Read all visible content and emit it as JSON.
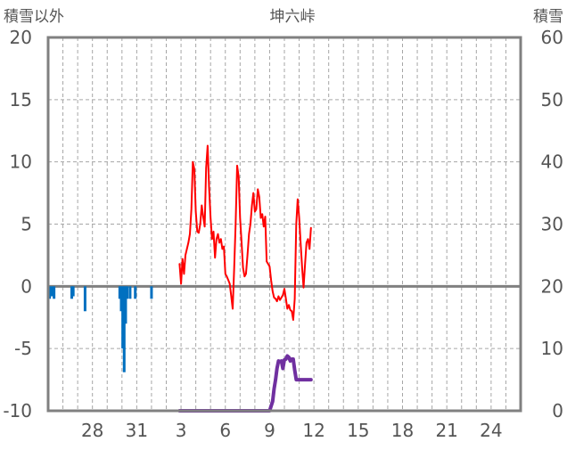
{
  "chart_data": {
    "type": "line",
    "title": "坤六峠",
    "left_axis_title": "積雪以外",
    "right_axis_title": "積雪",
    "x_ticks": [
      "28",
      "31",
      "3",
      "6",
      "9",
      "12",
      "15",
      "18",
      "21",
      "24"
    ],
    "x_tick_days": [
      3,
      6,
      9,
      12,
      15,
      18,
      21,
      24,
      27,
      30
    ],
    "xlim_days": [
      0,
      32
    ],
    "left_ylim": [
      -10,
      20
    ],
    "left_ticks": [
      "20",
      "15",
      "10",
      "5",
      "0",
      "-5",
      "-10"
    ],
    "right_ylim": [
      0,
      60
    ],
    "right_ticks": [
      "60",
      "50",
      "40",
      "30",
      "20",
      "10",
      "0"
    ],
    "grid": true,
    "series": [
      {
        "axis": "left",
        "color": "#ff0000",
        "style": "line",
        "points": [
          [
            8.9,
            1.8
          ],
          [
            9.0,
            0.2
          ],
          [
            9.1,
            2.2
          ],
          [
            9.2,
            1.0
          ],
          [
            9.3,
            2.5
          ],
          [
            9.5,
            3.5
          ],
          [
            9.6,
            4.2
          ],
          [
            9.7,
            6.2
          ],
          [
            9.8,
            10.0
          ],
          [
            9.9,
            9.4
          ],
          [
            10.0,
            6.0
          ],
          [
            10.1,
            4.4
          ],
          [
            10.2,
            4.3
          ],
          [
            10.3,
            5.0
          ],
          [
            10.4,
            6.5
          ],
          [
            10.5,
            5.6
          ],
          [
            10.6,
            4.8
          ],
          [
            10.7,
            9.5
          ],
          [
            10.8,
            11.3
          ],
          [
            10.9,
            8.0
          ],
          [
            11.0,
            5.5
          ],
          [
            11.1,
            3.8
          ],
          [
            11.2,
            4.4
          ],
          [
            11.3,
            2.3
          ],
          [
            11.4,
            3.8
          ],
          [
            11.5,
            4.2
          ],
          [
            11.6,
            3.5
          ],
          [
            11.7,
            3.8
          ],
          [
            11.8,
            3.0
          ],
          [
            11.9,
            3.2
          ],
          [
            12.0,
            1.0
          ],
          [
            12.1,
            0.8
          ],
          [
            12.2,
            0.5
          ],
          [
            12.3,
            0.2
          ],
          [
            12.4,
            -0.8
          ],
          [
            12.5,
            -1.8
          ],
          [
            12.6,
            1.5
          ],
          [
            12.7,
            5.0
          ],
          [
            12.8,
            9.7
          ],
          [
            12.9,
            8.8
          ],
          [
            13.0,
            5.5
          ],
          [
            13.1,
            3.5
          ],
          [
            13.2,
            1.5
          ],
          [
            13.3,
            0.8
          ],
          [
            13.4,
            1.0
          ],
          [
            13.5,
            2.5
          ],
          [
            13.6,
            4.2
          ],
          [
            13.7,
            5.0
          ],
          [
            13.8,
            6.5
          ],
          [
            13.9,
            7.5
          ],
          [
            14.0,
            6.0
          ],
          [
            14.1,
            6.2
          ],
          [
            14.2,
            7.8
          ],
          [
            14.3,
            7.2
          ],
          [
            14.4,
            5.5
          ],
          [
            14.5,
            5.8
          ],
          [
            14.6,
            4.8
          ],
          [
            14.7,
            5.6
          ],
          [
            14.8,
            2.0
          ],
          [
            14.9,
            1.8
          ],
          [
            15.0,
            1.6
          ],
          [
            15.1,
            0.5
          ],
          [
            15.2,
            -0.4
          ],
          [
            15.3,
            -0.9
          ],
          [
            15.4,
            -1.0
          ],
          [
            15.5,
            -1.2
          ],
          [
            15.6,
            -0.8
          ],
          [
            15.7,
            -1.1
          ],
          [
            15.8,
            -0.9
          ],
          [
            15.9,
            -0.7
          ],
          [
            16.0,
            -0.2
          ],
          [
            16.1,
            -1.0
          ],
          [
            16.2,
            -1.8
          ],
          [
            16.3,
            -1.5
          ],
          [
            16.4,
            -1.9
          ],
          [
            16.5,
            -2.0
          ],
          [
            16.6,
            -2.7
          ],
          [
            16.7,
            -1.0
          ],
          [
            16.8,
            5.0
          ],
          [
            16.9,
            7.0
          ],
          [
            17.0,
            5.5
          ],
          [
            17.1,
            3.5
          ],
          [
            17.2,
            1.5
          ],
          [
            17.3,
            -0.1
          ],
          [
            17.4,
            1.8
          ],
          [
            17.5,
            3.5
          ],
          [
            17.6,
            3.8
          ],
          [
            17.7,
            3.0
          ],
          [
            17.8,
            4.7
          ]
        ]
      },
      {
        "axis": "right",
        "color": "#7030a0",
        "style": "line",
        "points": [
          [
            8.9,
            0.0
          ],
          [
            15.0,
            0.0
          ],
          [
            15.2,
            1.5
          ],
          [
            15.3,
            3.5
          ],
          [
            15.4,
            5.0
          ],
          [
            15.5,
            6.8
          ],
          [
            15.6,
            8.0
          ],
          [
            15.7,
            7.9
          ],
          [
            15.8,
            8.0
          ],
          [
            15.9,
            6.8
          ],
          [
            16.0,
            8.2
          ],
          [
            16.1,
            8.3
          ],
          [
            16.2,
            8.8
          ],
          [
            16.3,
            8.6
          ],
          [
            16.4,
            8.0
          ],
          [
            16.5,
            8.3
          ],
          [
            16.6,
            8.3
          ],
          [
            16.7,
            6.5
          ],
          [
            16.8,
            5.0
          ],
          [
            16.9,
            5.0
          ],
          [
            17.6,
            5.0
          ],
          [
            17.8,
            5.0
          ]
        ]
      },
      {
        "axis": "left",
        "color": "#0070c0",
        "style": "bars",
        "points": [
          [
            0.1,
            -1.0
          ],
          [
            0.25,
            -0.8
          ],
          [
            0.4,
            -1.0
          ],
          [
            1.6,
            -1.0
          ],
          [
            1.7,
            -0.8
          ],
          [
            2.5,
            -2.0
          ],
          [
            4.85,
            -1.0
          ],
          [
            4.95,
            -2.0
          ],
          [
            5.05,
            -5.0
          ],
          [
            5.15,
            -6.9
          ],
          [
            5.25,
            -3.0
          ],
          [
            5.35,
            -1.0
          ],
          [
            5.55,
            -1.0
          ],
          [
            5.9,
            -1.0
          ],
          [
            7.0,
            -1.0
          ]
        ]
      }
    ]
  }
}
